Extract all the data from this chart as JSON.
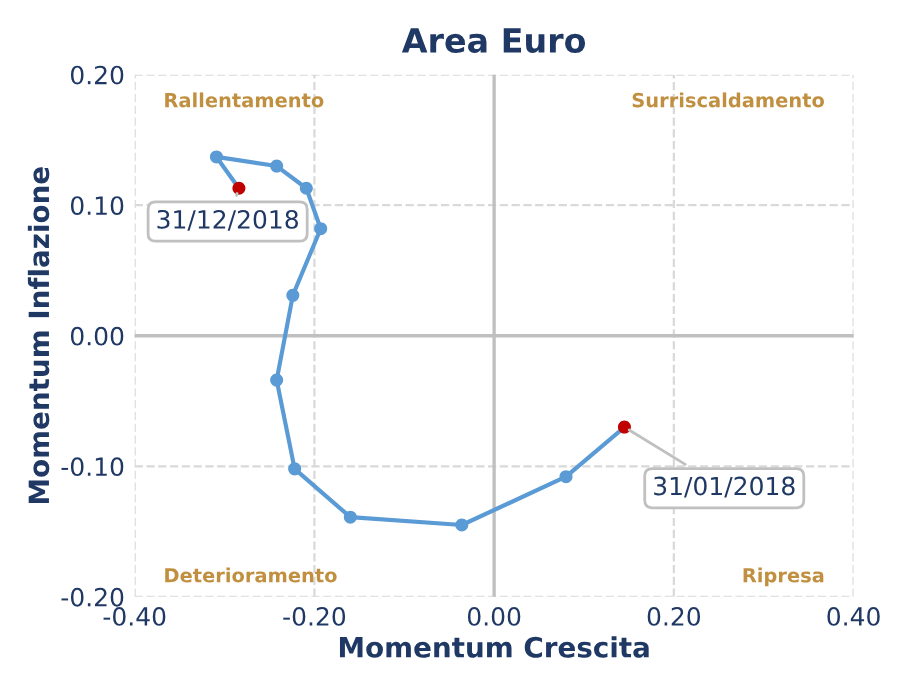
{
  "chart_data": {
    "type": "line",
    "title": "Area Euro",
    "xlabel": "Momentum Crescita",
    "ylabel": "Momentum Inflazione",
    "series": [
      {
        "color": "#5b9bd5",
        "x": [
          0.145,
          0.08,
          -0.036,
          -0.16,
          -0.222,
          -0.242,
          -0.224,
          -0.193,
          -0.209,
          -0.242,
          -0.309,
          -0.284
        ],
        "values": [
          -0.07,
          -0.108,
          -0.145,
          -0.139,
          -0.102,
          -0.034,
          0.031,
          0.082,
          0.113,
          0.13,
          0.137,
          0.113
        ],
        "colors": [
          "#c00000",
          "#5b9bd5",
          "#5b9bd5",
          "#5b9bd5",
          "#5b9bd5",
          "#5b9bd5",
          "#5b9bd5",
          "#5b9bd5",
          "#5b9bd5",
          "#5b9bd5",
          "#5b9bd5",
          "#c00000"
        ]
      }
    ],
    "marker": "circle",
    "line_style": "solid",
    "grid": true,
    "xlim": [
      -0.4,
      0.4
    ],
    "xticks": [
      {
        "value": -0.4,
        "label": "-0.40"
      },
      {
        "value": -0.2,
        "label": "-0.20"
      },
      {
        "value": 0,
        "label": "0.00"
      },
      {
        "value": 0.2,
        "label": "0.20"
      },
      {
        "value": 0.4,
        "label": "0.40"
      }
    ],
    "ylim": [
      -0.2,
      0.2
    ],
    "yticks": [
      {
        "value": -0.2,
        "label": "-0.20"
      },
      {
        "value": -0.1,
        "label": "-0.10"
      },
      {
        "value": 0,
        "label": "0.00"
      },
      {
        "value": 0.1,
        "label": "0.10"
      },
      {
        "value": 0.2,
        "label": "0.20"
      }
    ],
    "annotations": [
      {
        "text": "31/12/2018",
        "x": -0.284,
        "y": 0.113
      },
      {
        "text": "31/01/2018",
        "x": 0.145,
        "y": -0.07
      },
      "Rallentamento",
      "Surriscaldamento",
      "Deterioramento",
      "Ripresa"
    ]
  }
}
